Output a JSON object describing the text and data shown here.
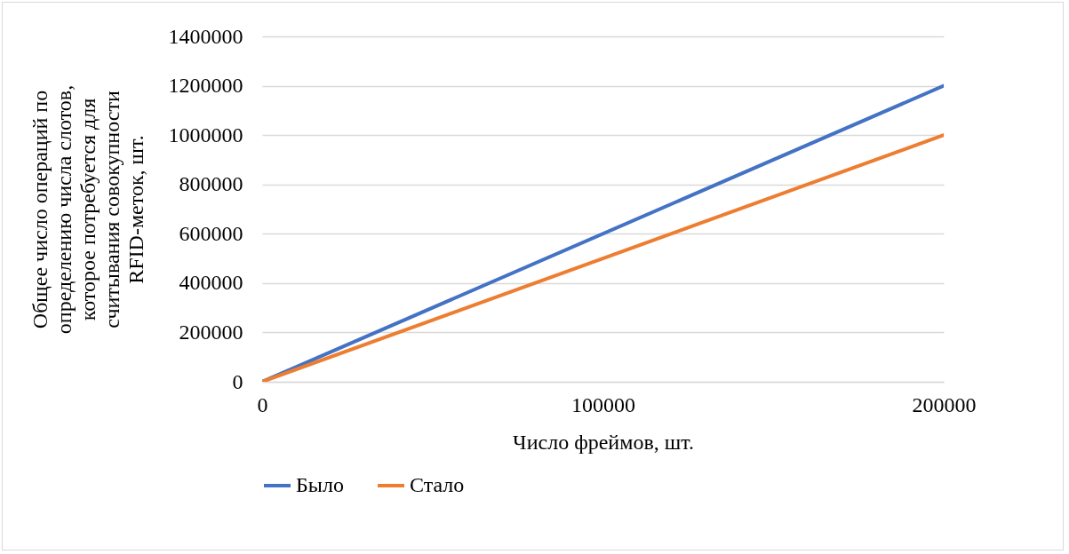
{
  "chart_data": {
    "type": "line",
    "xlabel": "Число фреймов, шт.",
    "ylabel": "Общее число операций по определению числа слотов, которое потребуется для считывания совокупности RFID-меток, шт.",
    "x": [
      0,
      200000
    ],
    "series": [
      {
        "name": "Было",
        "color": "#4472c4",
        "values": [
          0,
          1200000
        ]
      },
      {
        "name": "Стало",
        "color": "#ed7d31",
        "values": [
          0,
          1000000
        ]
      }
    ],
    "xlim": [
      0,
      200000
    ],
    "xticks": [
      0,
      100000,
      200000
    ],
    "ylim": [
      0,
      1400000
    ],
    "yticks": [
      0,
      200000,
      400000,
      600000,
      800000,
      1000000,
      1200000,
      1400000
    ],
    "grid": "y",
    "legend": "bottom",
    "marker": "none",
    "line_style": "solid"
  }
}
